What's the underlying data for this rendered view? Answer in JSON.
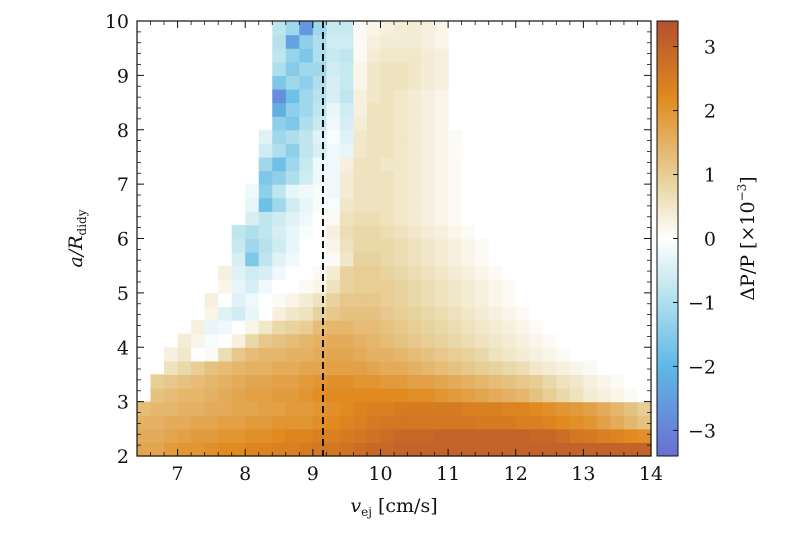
{
  "chart_data": {
    "type": "heatmap",
    "title": "",
    "xlabel": "v_ej [cm/s]",
    "xlabel_parts": {
      "main": "v",
      "sub": "ej",
      "unit": " [cm/s]"
    },
    "ylabel": "a/R_didy",
    "ylabel_parts": {
      "main": "a/R",
      "sub": "didy"
    },
    "xlim": [
      6.4,
      14.0
    ],
    "ylim": [
      2,
      10
    ],
    "x_ticks": [
      7,
      8,
      9,
      10,
      11,
      12,
      13,
      14
    ],
    "y_ticks": [
      2,
      3,
      4,
      5,
      6,
      7,
      8,
      9,
      10
    ],
    "x_tick_labels": [
      "7",
      "8",
      "9",
      "10",
      "11",
      "12",
      "13",
      "14"
    ],
    "y_tick_labels": [
      "2",
      "3",
      "4",
      "5",
      "6",
      "7",
      "8",
      "9",
      "10"
    ],
    "grid": false,
    "reference_line": {
      "x": 9.15,
      "style": "dashed",
      "color": "#111111"
    },
    "x_bin_edges": [
      6.4,
      6.6,
      6.8,
      7.0,
      7.2,
      7.4,
      7.6,
      7.8,
      8.0,
      8.2,
      8.4,
      8.6,
      8.8,
      9.0,
      9.2,
      9.4,
      9.6,
      9.8,
      10.0,
      10.2,
      10.4,
      10.6,
      10.8,
      11.0,
      11.2,
      11.4,
      11.6,
      11.8,
      12.0,
      12.2,
      12.4,
      12.6,
      12.8,
      13.0,
      13.2,
      13.4,
      13.6,
      13.8,
      14.0
    ],
    "y_bin_edges": [
      2.0,
      2.25,
      2.5,
      2.75,
      3.0,
      3.25,
      3.5,
      3.75,
      4.0,
      4.25,
      4.5,
      4.75,
      5.0,
      5.25,
      5.5,
      5.75,
      6.0,
      6.25,
      6.5,
      6.75,
      7.0,
      7.25,
      7.5,
      7.75,
      8.0,
      8.25,
      8.5,
      8.75,
      9.0,
      9.25,
      9.5,
      9.75,
      10.0
    ],
    "colorbar": {
      "label": "ΔP/P [×10⁻³]",
      "label_parts": {
        "main": "ΔP/P [×10",
        "sup": "−3",
        "end": "]"
      },
      "range": [
        -3.4,
        3.4
      ],
      "ticks": [
        -3,
        -2,
        -1,
        0,
        1,
        2,
        3
      ],
      "tick_labels": [
        "−3",
        "−2",
        "−1",
        "0",
        "1",
        "2",
        "3"
      ],
      "colors": {
        "min": "#6a6fd2",
        "low": "#5fb8e6",
        "mid_low": "#bfe6ee",
        "mid": "#ffffff",
        "mid_high": "#e9d8a8",
        "high": "#e08a1f",
        "max": "#b5502f"
      }
    },
    "values_note": "ΔP/P (×10⁻³) per bin, rows are y bins from bottom (2.0) to top (10.0); null = empty bin",
    "values": [
      [
        1.7,
        1.7,
        1.9,
        2.0,
        2.0,
        2.1,
        2.2,
        2.2,
        2.3,
        2.3,
        2.4,
        2.4,
        2.5,
        2.6,
        2.6,
        2.7,
        2.8,
        2.9,
        2.9,
        3.0,
        3.0,
        3.0,
        3.0,
        3.0,
        3.0,
        3.0,
        3.0,
        3.0,
        3.0,
        3.0,
        3.0,
        3.0,
        3.0,
        3.0,
        3.0,
        3.0,
        3.0,
        3.0
      ],
      [
        1.6,
        1.6,
        1.7,
        1.8,
        1.9,
        1.9,
        2.0,
        2.0,
        2.1,
        2.1,
        2.2,
        2.3,
        2.3,
        2.4,
        2.4,
        2.5,
        2.6,
        2.7,
        2.8,
        2.9,
        2.9,
        2.9,
        3.0,
        3.0,
        3.0,
        3.0,
        3.0,
        3.0,
        3.0,
        2.9,
        2.9,
        2.8,
        2.6,
        2.5,
        2.4,
        2.3,
        2.2,
        2.1
      ],
      [
        1.5,
        1.5,
        1.6,
        1.6,
        1.7,
        1.7,
        1.8,
        1.8,
        1.9,
        1.9,
        2.0,
        2.0,
        2.0,
        2.1,
        2.2,
        2.3,
        2.4,
        2.5,
        2.6,
        2.6,
        2.6,
        2.6,
        2.6,
        2.6,
        2.6,
        2.5,
        2.5,
        2.5,
        2.4,
        2.4,
        2.3,
        2.2,
        2.1,
        2.0,
        1.8,
        1.6,
        1.4,
        1.2
      ],
      [
        1.3,
        1.4,
        1.4,
        1.5,
        1.5,
        1.6,
        1.6,
        1.7,
        1.7,
        1.8,
        1.8,
        1.9,
        1.9,
        2.0,
        2.1,
        2.2,
        2.3,
        2.4,
        2.4,
        2.5,
        2.5,
        2.5,
        2.5,
        2.5,
        2.4,
        2.4,
        2.4,
        2.3,
        2.3,
        2.2,
        2.1,
        2.0,
        1.9,
        1.8,
        1.6,
        1.4,
        1.2,
        1.0
      ],
      [
        null,
        1.2,
        1.3,
        1.4,
        1.4,
        1.5,
        1.6,
        1.7,
        1.8,
        1.8,
        1.9,
        1.9,
        2.0,
        2.1,
        2.2,
        2.2,
        2.2,
        2.2,
        2.2,
        2.2,
        2.1,
        2.1,
        2.0,
        1.9,
        1.8,
        1.7,
        1.6,
        1.5,
        1.4,
        1.2,
        1.0,
        0.8,
        0.6,
        0.4,
        0.3,
        0.2,
        0.1,
        0.0
      ],
      [
        null,
        1.0,
        1.1,
        1.2,
        1.3,
        1.4,
        1.5,
        1.6,
        1.7,
        1.7,
        1.8,
        1.8,
        1.9,
        2.0,
        2.1,
        2.1,
        2.0,
        2.0,
        1.9,
        1.9,
        1.8,
        1.8,
        1.7,
        1.6,
        1.5,
        1.4,
        1.3,
        1.2,
        1.1,
        1.0,
        0.8,
        0.6,
        0.5,
        0.3,
        0.2,
        0.1,
        0.0,
        null
      ],
      [
        null,
        null,
        0.6,
        0.8,
        1.0,
        1.2,
        1.3,
        1.4,
        1.5,
        1.5,
        1.6,
        1.6,
        1.7,
        1.7,
        1.8,
        1.8,
        1.8,
        1.7,
        1.6,
        1.6,
        1.5,
        1.4,
        1.3,
        1.2,
        1.1,
        1.0,
        0.9,
        0.8,
        0.7,
        0.5,
        0.4,
        0.3,
        0.2,
        0.1,
        0.0,
        null,
        null,
        null
      ],
      [
        null,
        null,
        0.3,
        0.5,
        0.0,
        0.1,
        0.7,
        1.1,
        1.3,
        1.4,
        1.4,
        1.5,
        1.5,
        1.6,
        1.7,
        1.7,
        1.6,
        1.5,
        1.5,
        1.4,
        1.3,
        1.2,
        1.1,
        1.0,
        0.9,
        0.8,
        0.6,
        0.5,
        0.4,
        0.3,
        0.2,
        0.1,
        0.0,
        null,
        null,
        null,
        null,
        null
      ],
      [
        null,
        null,
        null,
        0.4,
        0.2,
        -0.1,
        0.0,
        0.3,
        0.8,
        1.1,
        1.2,
        1.3,
        1.4,
        1.5,
        1.6,
        1.6,
        1.5,
        1.4,
        1.3,
        1.2,
        1.1,
        1.0,
        0.9,
        0.8,
        0.7,
        0.6,
        0.5,
        0.4,
        0.3,
        0.2,
        0.1,
        0.0,
        null,
        null,
        null,
        null,
        null,
        null
      ],
      [
        null,
        null,
        null,
        null,
        0.3,
        -0.3,
        -0.2,
        0.0,
        0.2,
        0.5,
        0.8,
        0.9,
        1.0,
        1.3,
        1.4,
        1.4,
        1.3,
        1.3,
        1.2,
        1.1,
        1.0,
        0.9,
        0.8,
        0.7,
        0.6,
        0.5,
        0.4,
        0.3,
        0.2,
        0.1,
        0.0,
        null,
        null,
        null,
        null,
        null,
        null,
        null
      ],
      [
        null,
        null,
        null,
        null,
        null,
        0.2,
        -0.4,
        -0.6,
        -0.3,
        0.0,
        0.3,
        0.5,
        0.6,
        0.9,
        1.1,
        1.2,
        1.2,
        1.2,
        1.1,
        1.0,
        0.9,
        0.8,
        0.7,
        0.6,
        0.5,
        0.4,
        0.3,
        0.2,
        0.1,
        0.0,
        null,
        null,
        null,
        null,
        null,
        null,
        null,
        null
      ],
      [
        null,
        null,
        null,
        null,
        null,
        0.3,
        0.0,
        -0.4,
        -0.2,
        0.0,
        0.1,
        0.2,
        0.4,
        0.6,
        0.9,
        1.1,
        1.1,
        1.1,
        1.0,
        0.9,
        0.8,
        0.7,
        0.6,
        0.5,
        0.4,
        0.3,
        0.2,
        0.1,
        0.0,
        null,
        null,
        null,
        null,
        null,
        null,
        null,
        null,
        null
      ],
      [
        null,
        null,
        null,
        null,
        null,
        null,
        0.2,
        -0.3,
        -0.5,
        -0.2,
        0.0,
        0.0,
        0.1,
        0.2,
        0.6,
        0.9,
        1.0,
        1.0,
        1.0,
        0.9,
        0.8,
        0.7,
        0.6,
        0.5,
        0.4,
        0.3,
        0.2,
        0.1,
        0.0,
        null,
        null,
        null,
        null,
        null,
        null,
        null,
        null,
        null
      ],
      [
        null,
        null,
        null,
        null,
        null,
        null,
        0.3,
        -0.4,
        -0.6,
        -0.5,
        -0.2,
        0.0,
        0.0,
        0.1,
        0.4,
        0.9,
        1.0,
        1.0,
        0.9,
        0.8,
        0.7,
        0.6,
        0.5,
        0.4,
        0.3,
        0.2,
        0.1,
        0.0,
        null,
        null,
        null,
        null,
        null,
        null,
        null,
        null,
        null,
        null
      ],
      [
        null,
        null,
        null,
        null,
        null,
        null,
        null,
        -0.5,
        -1.6,
        -0.8,
        -0.4,
        -0.2,
        0.0,
        0.0,
        0.1,
        0.5,
        0.9,
        0.9,
        0.8,
        0.7,
        0.6,
        0.5,
        0.4,
        0.3,
        0.2,
        0.1,
        0.0,
        null,
        null,
        null,
        null,
        null,
        null,
        null,
        null,
        null,
        null,
        null
      ],
      [
        null,
        null,
        null,
        null,
        null,
        null,
        null,
        -0.7,
        -1.2,
        -0.9,
        -0.6,
        -0.3,
        0.0,
        0.0,
        0.2,
        0.6,
        0.8,
        0.8,
        0.8,
        0.7,
        0.6,
        0.5,
        0.4,
        0.3,
        0.2,
        0.1,
        0.0,
        null,
        null,
        null,
        null,
        null,
        null,
        null,
        null,
        null,
        null,
        null
      ],
      [
        null,
        null,
        null,
        null,
        null,
        null,
        null,
        -0.8,
        -1.0,
        -0.8,
        -0.5,
        -0.3,
        -0.1,
        0.0,
        0.3,
        0.7,
        0.8,
        0.8,
        0.7,
        0.6,
        0.5,
        0.4,
        0.3,
        0.2,
        0.1,
        0.0,
        null,
        null,
        null,
        null,
        null,
        null,
        null,
        null,
        null,
        null,
        null,
        null
      ],
      [
        null,
        null,
        null,
        null,
        null,
        null,
        null,
        null,
        -0.5,
        -0.8,
        -0.6,
        -0.4,
        -0.2,
        0.0,
        0.1,
        0.6,
        0.7,
        0.7,
        0.6,
        0.5,
        0.4,
        0.3,
        0.2,
        0.1,
        0.0,
        null,
        null,
        null,
        null,
        null,
        null,
        null,
        null,
        null,
        null,
        null,
        null,
        null
      ],
      [
        null,
        null,
        null,
        null,
        null,
        null,
        null,
        null,
        -0.3,
        -1.8,
        -1.2,
        -0.6,
        -0.3,
        -0.1,
        -0.1,
        0.5,
        0.6,
        0.6,
        0.6,
        0.5,
        0.4,
        0.3,
        0.2,
        0.1,
        0.0,
        null,
        null,
        null,
        null,
        null,
        null,
        null,
        null,
        null,
        null,
        null,
        null,
        null
      ],
      [
        null,
        null,
        null,
        null,
        null,
        null,
        null,
        null,
        -0.2,
        -1.4,
        -0.8,
        -0.3,
        -0.2,
        -0.1,
        -0.2,
        0.4,
        0.6,
        0.6,
        0.6,
        0.5,
        0.4,
        0.3,
        0.2,
        0.1,
        0.0,
        null,
        null,
        null,
        null,
        null,
        null,
        null,
        null,
        null,
        null,
        null,
        null,
        null
      ],
      [
        null,
        null,
        null,
        null,
        null,
        null,
        null,
        null,
        null,
        -1.6,
        -1.4,
        -1.0,
        -0.6,
        -0.2,
        -0.2,
        0.4,
        0.6,
        0.6,
        0.6,
        0.5,
        0.4,
        0.3,
        0.2,
        0.1,
        0.0,
        null,
        null,
        null,
        null,
        null,
        null,
        null,
        null,
        null,
        null,
        null,
        null,
        null
      ],
      [
        null,
        null,
        null,
        null,
        null,
        null,
        null,
        null,
        null,
        -1.2,
        -1.8,
        -1.2,
        -0.7,
        -0.2,
        -0.2,
        0.3,
        0.6,
        0.6,
        0.5,
        0.5,
        0.4,
        0.3,
        0.2,
        0.1,
        0.0,
        null,
        null,
        null,
        null,
        null,
        null,
        null,
        null,
        null,
        null,
        null,
        null,
        null
      ],
      [
        null,
        null,
        null,
        null,
        null,
        null,
        null,
        null,
        null,
        -0.6,
        -1.0,
        -1.4,
        -0.8,
        -0.5,
        -0.2,
        -0.3,
        0.5,
        0.6,
        0.6,
        0.5,
        0.4,
        0.3,
        0.2,
        0.1,
        null,
        null,
        null,
        null,
        null,
        null,
        null,
        null,
        null,
        null,
        null,
        null,
        null,
        null
      ],
      [
        null,
        null,
        null,
        null,
        null,
        null,
        null,
        null,
        null,
        -0.4,
        -1.2,
        -1.0,
        -0.8,
        -0.4,
        -0.1,
        -0.4,
        0.5,
        0.6,
        0.6,
        0.5,
        0.4,
        0.3,
        0.2,
        0.1,
        null,
        null,
        null,
        null,
        null,
        null,
        null,
        null,
        null,
        null,
        null,
        null,
        null,
        null
      ],
      [
        null,
        null,
        null,
        null,
        null,
        null,
        null,
        null,
        null,
        null,
        -1.4,
        -1.6,
        -1.0,
        -0.7,
        -0.2,
        -0.5,
        0.4,
        0.6,
        0.6,
        0.5,
        0.4,
        0.3,
        0.2,
        null,
        null,
        null,
        null,
        null,
        null,
        null,
        null,
        null,
        null,
        null,
        null,
        null,
        null,
        null
      ],
      [
        null,
        null,
        null,
        null,
        null,
        null,
        null,
        null,
        null,
        null,
        -2.2,
        -1.4,
        -1.2,
        -0.8,
        -0.3,
        -0.6,
        0.3,
        0.6,
        0.6,
        0.5,
        0.4,
        0.3,
        0.2,
        null,
        null,
        null,
        null,
        null,
        null,
        null,
        null,
        null,
        null,
        null,
        null,
        null,
        null,
        null
      ],
      [
        null,
        null,
        null,
        null,
        null,
        null,
        null,
        null,
        null,
        null,
        -2.8,
        -1.8,
        -1.2,
        -0.9,
        -0.5,
        -0.8,
        0.3,
        0.5,
        0.6,
        0.5,
        0.4,
        0.3,
        0.2,
        null,
        null,
        null,
        null,
        null,
        null,
        null,
        null,
        null,
        null,
        null,
        null,
        null,
        null,
        null
      ],
      [
        null,
        null,
        null,
        null,
        null,
        null,
        null,
        null,
        null,
        null,
        -1.6,
        -1.2,
        -1.4,
        -1.0,
        -0.5,
        -0.7,
        0.2,
        0.5,
        0.6,
        0.6,
        0.5,
        0.4,
        0.3,
        null,
        null,
        null,
        null,
        null,
        null,
        null,
        null,
        null,
        null,
        null,
        null,
        null,
        null,
        null
      ],
      [
        null,
        null,
        null,
        null,
        null,
        null,
        null,
        null,
        null,
        null,
        -1.0,
        -1.5,
        -1.2,
        -1.2,
        -0.6,
        -0.7,
        0.2,
        0.5,
        0.6,
        0.6,
        0.5,
        0.4,
        0.3,
        null,
        null,
        null,
        null,
        null,
        null,
        null,
        null,
        null,
        null,
        null,
        null,
        null,
        null,
        null
      ],
      [
        null,
        null,
        null,
        null,
        null,
        null,
        null,
        null,
        null,
        null,
        -0.8,
        -1.3,
        -1.6,
        -1.0,
        -0.7,
        -0.8,
        0.1,
        0.4,
        0.5,
        0.5,
        0.5,
        0.4,
        0.3,
        null,
        null,
        null,
        null,
        null,
        null,
        null,
        null,
        null,
        null,
        null,
        null,
        null,
        null,
        null
      ],
      [
        null,
        null,
        null,
        null,
        null,
        null,
        null,
        null,
        null,
        null,
        -0.9,
        -2.4,
        -1.4,
        -1.0,
        -0.6,
        -0.6,
        0.1,
        0.3,
        0.4,
        0.4,
        0.4,
        0.3,
        0.2,
        null,
        null,
        null,
        null,
        null,
        null,
        null,
        null,
        null,
        null,
        null,
        null,
        null,
        null,
        null
      ],
      [
        null,
        null,
        null,
        null,
        null,
        null,
        null,
        null,
        null,
        null,
        -0.8,
        -1.2,
        -2.6,
        -1.2,
        -0.7,
        -0.7,
        0.1,
        0.2,
        0.3,
        0.4,
        0.4,
        0.3,
        0.2,
        null,
        null,
        null,
        null,
        null,
        null,
        null,
        null,
        null,
        null,
        null,
        null,
        null,
        null,
        null
      ]
    ]
  }
}
